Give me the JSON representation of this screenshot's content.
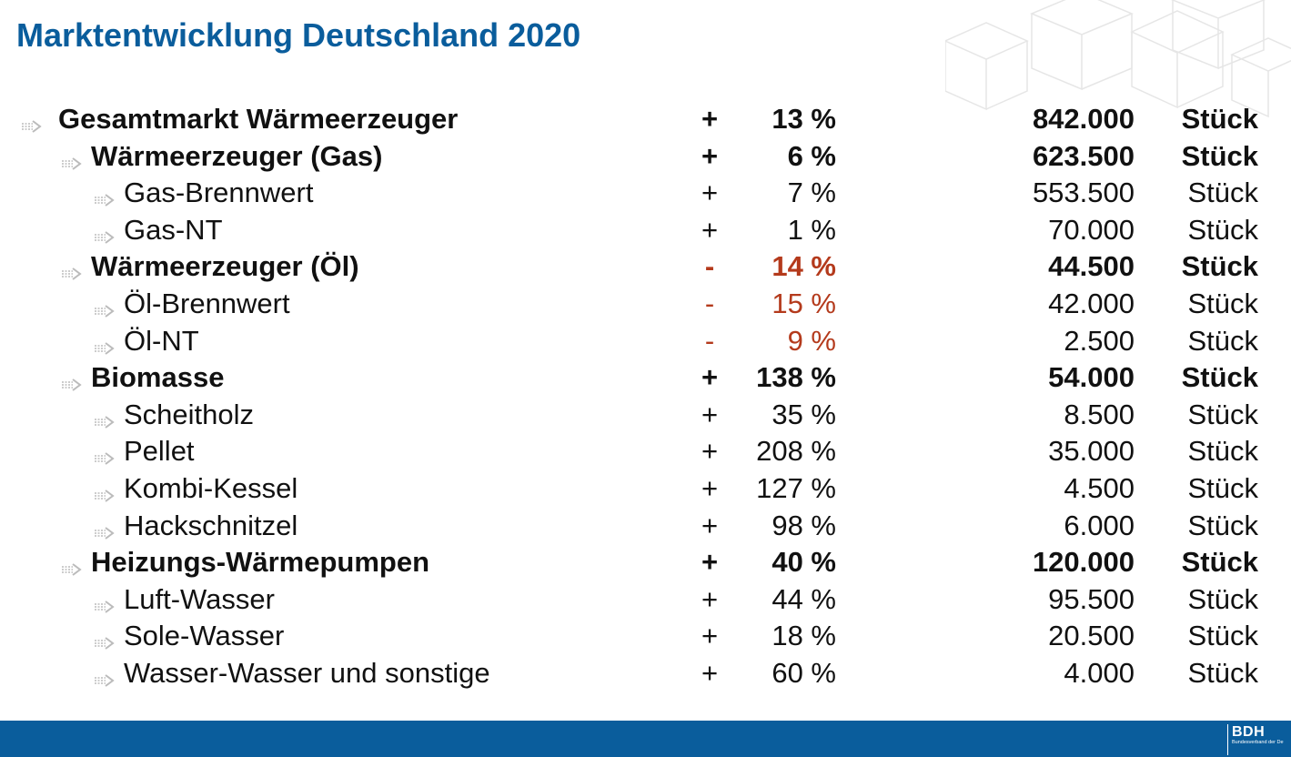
{
  "title": "Marktentwicklung Deutschland 2020",
  "colors": {
    "title": "#0a5d9c",
    "negative": "#b43a1c",
    "footer": "#0a5d9c"
  },
  "rows": [
    {
      "label": "Gesamtmarkt Wärmeerzeuger",
      "sign": "+",
      "pct": "13 %",
      "count": "842.000",
      "unit": "Stück",
      "level": 0,
      "bold": true,
      "negative": false
    },
    {
      "label": "Wärmeerzeuger (Gas)",
      "sign": "+",
      "pct": "6 %",
      "count": "623.500",
      "unit": "Stück",
      "level": 1,
      "bold": true,
      "negative": false
    },
    {
      "label": "Gas-Brennwert",
      "sign": "+",
      "pct": "7 %",
      "count": "553.500",
      "unit": "Stück",
      "level": 2,
      "bold": false,
      "negative": false
    },
    {
      "label": "Gas-NT",
      "sign": "+",
      "pct": "1 %",
      "count": "70.000",
      "unit": "Stück",
      "level": 2,
      "bold": false,
      "negative": false
    },
    {
      "label": "Wärmeerzeuger (Öl)",
      "sign": "-",
      "pct": "14 %",
      "count": "44.500",
      "unit": "Stück",
      "level": 1,
      "bold": true,
      "negative": true
    },
    {
      "label": "Öl-Brennwert",
      "sign": "-",
      "pct": "15 %",
      "count": "42.000",
      "unit": "Stück",
      "level": 2,
      "bold": false,
      "negative": true
    },
    {
      "label": "Öl-NT",
      "sign": "-",
      "pct": "9 %",
      "count": "2.500",
      "unit": "Stück",
      "level": 2,
      "bold": false,
      "negative": true
    },
    {
      "label": "Biomasse",
      "sign": "+",
      "pct": "138 %",
      "count": "54.000",
      "unit": "Stück",
      "level": 1,
      "bold": true,
      "negative": false
    },
    {
      "label": "Scheitholz",
      "sign": "+",
      "pct": "35 %",
      "count": "8.500",
      "unit": "Stück",
      "level": 2,
      "bold": false,
      "negative": false
    },
    {
      "label": "Pellet",
      "sign": "+",
      "pct": "208 %",
      "count": "35.000",
      "unit": "Stück",
      "level": 2,
      "bold": false,
      "negative": false
    },
    {
      "label": "Kombi-Kessel",
      "sign": "+",
      "pct": "127 %",
      "count": "4.500",
      "unit": "Stück",
      "level": 2,
      "bold": false,
      "negative": false
    },
    {
      "label": "Hackschnitzel",
      "sign": "+",
      "pct": "98 %",
      "count": "6.000",
      "unit": "Stück",
      "level": 2,
      "bold": false,
      "negative": false
    },
    {
      "label": "Heizungs-Wärmepumpen",
      "sign": "+",
      "pct": "40 %",
      "count": "120.000",
      "unit": "Stück",
      "level": 1,
      "bold": true,
      "negative": false
    },
    {
      "label": "Luft-Wasser",
      "sign": "+",
      "pct": "44 %",
      "count": "95.500",
      "unit": "Stück",
      "level": 2,
      "bold": false,
      "negative": false
    },
    {
      "label": "Sole-Wasser",
      "sign": "+",
      "pct": "18 %",
      "count": "20.500",
      "unit": "Stück",
      "level": 2,
      "bold": false,
      "negative": false
    },
    {
      "label": "Wasser-Wasser und sonstige",
      "sign": "+",
      "pct": "60 %",
      "count": "4.000",
      "unit": "Stück",
      "level": 2,
      "bold": false,
      "negative": false
    }
  ],
  "logo": {
    "mark": "BDH",
    "subtitle": "Bundesverband der Deutschen Heizungsindustrie"
  }
}
